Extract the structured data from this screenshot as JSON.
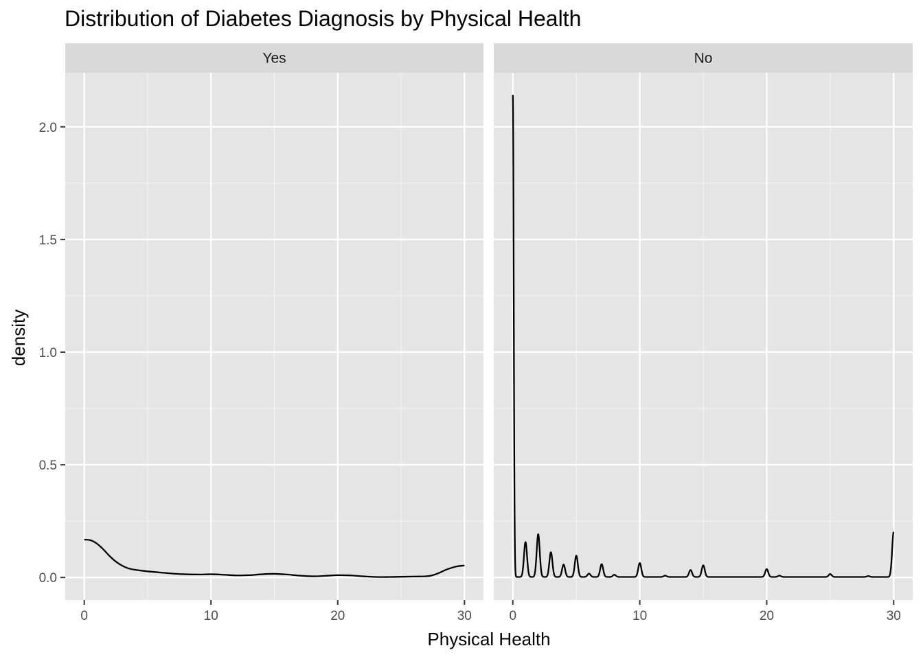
{
  "chart_data": {
    "type": "line",
    "title": "Distribution of Diabetes Diagnosis by Physical Health",
    "xlabel": "Physical Health",
    "ylabel": "density",
    "xlim": [
      -1.5,
      31.5
    ],
    "ylim": [
      -0.1,
      2.24
    ],
    "x_ticks": [
      0,
      10,
      20,
      30
    ],
    "x_tick_labels": [
      "0",
      "10",
      "20",
      "30"
    ],
    "y_ticks": [
      0.0,
      0.5,
      1.0,
      1.5,
      2.0
    ],
    "y_tick_labels": [
      "0.0",
      "0.5",
      "1.0",
      "1.5",
      "2.0"
    ],
    "grid": true,
    "facets": [
      {
        "label": "Yes",
        "x": [
          0,
          0.5,
          1,
          1.5,
          2,
          2.5,
          3,
          3.5,
          4,
          5,
          6,
          7,
          8,
          9,
          10,
          11,
          12,
          13,
          14,
          15,
          16,
          17,
          18,
          19,
          20,
          21,
          22,
          23,
          24,
          25,
          26,
          27,
          27.5,
          28,
          28.5,
          29,
          29.5,
          30
        ],
        "y": [
          0.168,
          0.165,
          0.15,
          0.125,
          0.095,
          0.07,
          0.052,
          0.04,
          0.034,
          0.027,
          0.022,
          0.017,
          0.014,
          0.013,
          0.014,
          0.012,
          0.009,
          0.01,
          0.014,
          0.016,
          0.013,
          0.008,
          0.005,
          0.007,
          0.01,
          0.009,
          0.005,
          0.002,
          0.002,
          0.003,
          0.004,
          0.005,
          0.01,
          0.02,
          0.033,
          0.043,
          0.05,
          0.053
        ]
      },
      {
        "label": "No",
        "peaks": [
          {
            "x": 0,
            "y": 2.14
          },
          {
            "x": 1,
            "y": 0.155
          },
          {
            "x": 2,
            "y": 0.19
          },
          {
            "x": 3,
            "y": 0.11
          },
          {
            "x": 4,
            "y": 0.055
          },
          {
            "x": 5,
            "y": 0.095
          },
          {
            "x": 6,
            "y": 0.015
          },
          {
            "x": 7,
            "y": 0.057
          },
          {
            "x": 8,
            "y": 0.01
          },
          {
            "x": 10,
            "y": 0.062
          },
          {
            "x": 12,
            "y": 0.006
          },
          {
            "x": 14,
            "y": 0.031
          },
          {
            "x": 15,
            "y": 0.052
          },
          {
            "x": 20,
            "y": 0.035
          },
          {
            "x": 21,
            "y": 0.006
          },
          {
            "x": 25,
            "y": 0.013
          },
          {
            "x": 28,
            "y": 0.004
          },
          {
            "x": 30,
            "y": 0.2
          }
        ]
      }
    ]
  }
}
